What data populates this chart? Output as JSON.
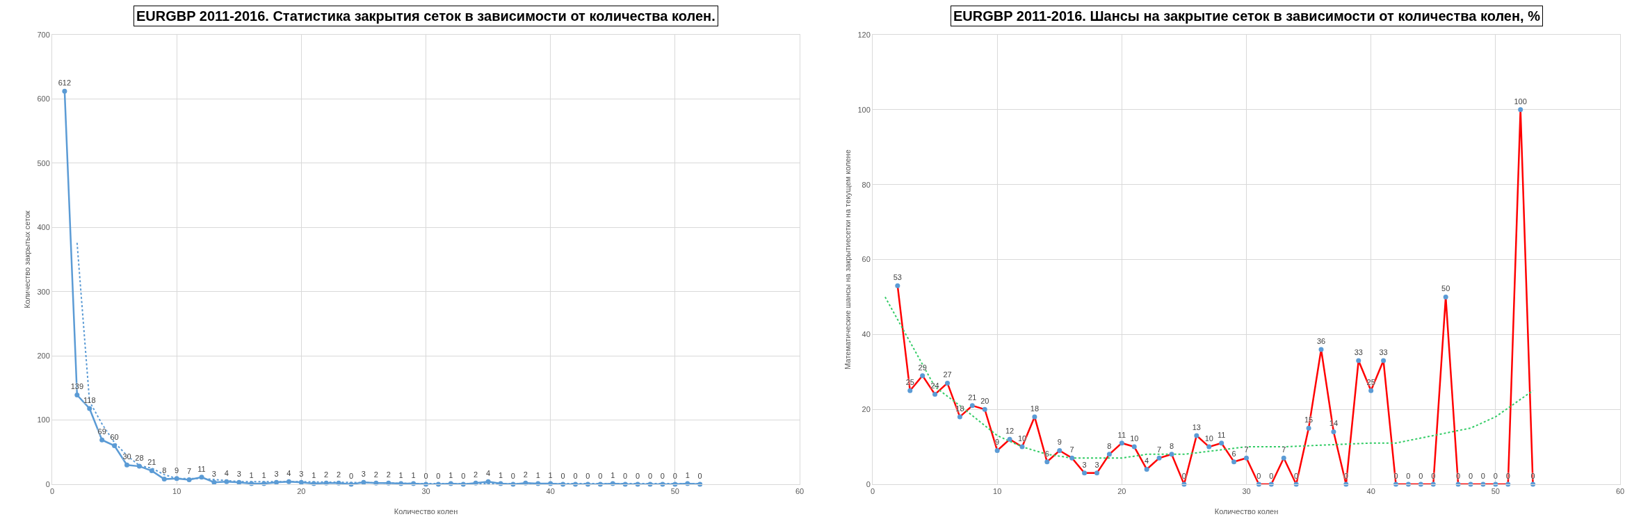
{
  "chart_data": [
    {
      "type": "line",
      "title": "EURGBP 2011-2016. Статистика закрытия сеток в зависимости от количества колен.",
      "xlabel": "Количество колен",
      "ylabel": "Количество закрытых сеток",
      "xlim": [
        0,
        60
      ],
      "xticks": [
        0,
        10,
        20,
        30,
        40,
        50,
        60
      ],
      "ylim": [
        0,
        700
      ],
      "yticks": [
        0,
        100,
        200,
        300,
        400,
        500,
        600,
        700
      ],
      "grid": true,
      "series": [
        {
          "marker": "circle",
          "color": "#5b9bd5",
          "x": [
            1,
            2,
            3,
            4,
            5,
            6,
            7,
            8,
            9,
            10,
            11,
            12,
            13,
            14,
            15,
            16,
            17,
            18,
            19,
            20,
            21,
            22,
            23,
            24,
            25,
            26,
            27,
            28,
            29,
            30,
            31,
            32,
            33,
            34,
            35,
            36,
            37,
            38,
            39,
            40,
            41,
            42,
            43,
            44,
            45,
            46,
            47,
            48,
            49,
            50,
            51,
            52
          ],
          "values": [
            612,
            139,
            118,
            69,
            60,
            30,
            28,
            21,
            8,
            9,
            7,
            11,
            3,
            4,
            3,
            1,
            1,
            3,
            4,
            3,
            1,
            2,
            2,
            0,
            3,
            2,
            2,
            1,
            1,
            0,
            0,
            1,
            0,
            2,
            4,
            1,
            0,
            2,
            1,
            1,
            0,
            0,
            0,
            0,
            1,
            0,
            0,
            0,
            0,
            0,
            1,
            0
          ],
          "value_labels": [
            "612",
            "139",
            "118",
            "69",
            "60",
            "30",
            "28",
            "21",
            "8",
            "9",
            "7",
            "11",
            "3",
            "4",
            "3",
            "1",
            "1",
            "3",
            "4",
            "3",
            "1",
            "2",
            "2",
            "0",
            "3",
            "2",
            "2",
            "1",
            "1",
            "0",
            "0",
            "1",
            "0",
            "2",
            "4",
            "1",
            "0",
            "2",
            "1",
            "1",
            "0",
            "0",
            "0",
            "0",
            "1",
            "0",
            "0",
            "0",
            "0",
            "0",
            "1",
            "0"
          ]
        },
        {
          "type": "line",
          "marker": "none",
          "line_style": "dotted",
          "color": "#5b9bd5",
          "x": [
            2,
            3,
            4,
            5,
            6,
            7,
            8,
            9,
            10,
            12,
            15,
            20,
            30,
            40,
            52
          ],
          "values": [
            376,
            129,
            94,
            65,
            45,
            29,
            25,
            15,
            9,
            9,
            4,
            4,
            1,
            1,
            1
          ]
        }
      ]
    },
    {
      "type": "line",
      "title": "EURGBP 2011-2016. Шансы на закрытие сеток в зависимости от количества колен, %",
      "xlabel": "Количество колен",
      "ylabel": "Математические шансы на закрытиесетки на текущем колене",
      "xlim": [
        0,
        60
      ],
      "xticks": [
        0,
        10,
        20,
        30,
        40,
        50,
        60
      ],
      "ylim": [
        0,
        120
      ],
      "yticks": [
        0,
        20,
        40,
        60,
        80,
        100,
        120
      ],
      "grid": true,
      "series": [
        {
          "marker": "none",
          "color": "#ff0000",
          "x": [
            2,
            3,
            4,
            5,
            6,
            7,
            8,
            9,
            10,
            11,
            12,
            13,
            14,
            15,
            16,
            17,
            18,
            19,
            20,
            21,
            22,
            23,
            24,
            25,
            26,
            27,
            28,
            29,
            30,
            31,
            32,
            33,
            34,
            35,
            36,
            37,
            38,
            39,
            40,
            41,
            42,
            43,
            44,
            45,
            46,
            47,
            48,
            49,
            50,
            51,
            52,
            53
          ],
          "values": [
            53,
            25,
            29,
            24,
            27,
            18,
            21,
            20,
            9,
            12,
            10,
            18,
            6,
            9,
            7,
            3,
            3,
            8,
            11,
            10,
            4,
            7,
            8,
            0,
            13,
            10,
            11,
            6,
            7,
            0,
            0,
            7,
            0,
            15,
            36,
            14,
            0,
            33,
            25,
            33,
            0,
            0,
            0,
            0,
            50,
            0,
            0,
            0,
            0,
            0,
            100,
            0
          ]
        },
        {
          "type": "scatter",
          "marker": "circle",
          "color": "#5b9bd5",
          "x": [
            2,
            3,
            4,
            5,
            6,
            7,
            8,
            9,
            10,
            11,
            12,
            13,
            14,
            15,
            16,
            17,
            18,
            19,
            20,
            21,
            22,
            23,
            24,
            25,
            26,
            27,
            28,
            29,
            30,
            31,
            32,
            33,
            34,
            35,
            36,
            37,
            38,
            39,
            40,
            41,
            42,
            43,
            44,
            45,
            46,
            47,
            48,
            49,
            50,
            51,
            52,
            53
          ],
          "values": [
            53,
            25,
            29,
            24,
            27,
            18,
            21,
            20,
            9,
            12,
            10,
            18,
            6,
            9,
            7,
            3,
            3,
            8,
            11,
            10,
            4,
            7,
            8,
            0,
            13,
            10,
            11,
            6,
            7,
            0,
            0,
            7,
            0,
            15,
            36,
            14,
            0,
            33,
            25,
            33,
            0,
            0,
            0,
            0,
            50,
            0,
            0,
            0,
            0,
            0,
            100,
            0
          ],
          "value_labels": [
            "53",
            "25",
            "29",
            "24",
            "27",
            "18",
            "21",
            "20",
            "9",
            "12",
            "10",
            "18",
            "6",
            "9",
            "7",
            "3",
            "3",
            "8",
            "11",
            "10",
            "4",
            "7",
            "8",
            "0",
            "13",
            "10",
            "11",
            "6",
            "7",
            "0",
            "0",
            "7",
            "0",
            "15",
            "36",
            "14",
            "0",
            "33",
            "25",
            "33",
            "0",
            "0",
            "0",
            "0",
            "50",
            "0",
            "0",
            "0",
            "0",
            "0",
            "100",
            "0"
          ]
        },
        {
          "type": "line",
          "marker": "none",
          "line_style": "dotted",
          "color": "#33cc66",
          "x": [
            1,
            3,
            5,
            7,
            10,
            12,
            14,
            16,
            18,
            20,
            22,
            25,
            30,
            33,
            40,
            42,
            45,
            48,
            50,
            53
          ],
          "values": [
            50,
            38,
            26,
            21,
            13,
            10,
            8,
            7,
            7,
            7,
            8,
            8,
            10,
            10,
            11,
            11,
            13,
            15,
            18,
            25
          ]
        }
      ]
    }
  ]
}
